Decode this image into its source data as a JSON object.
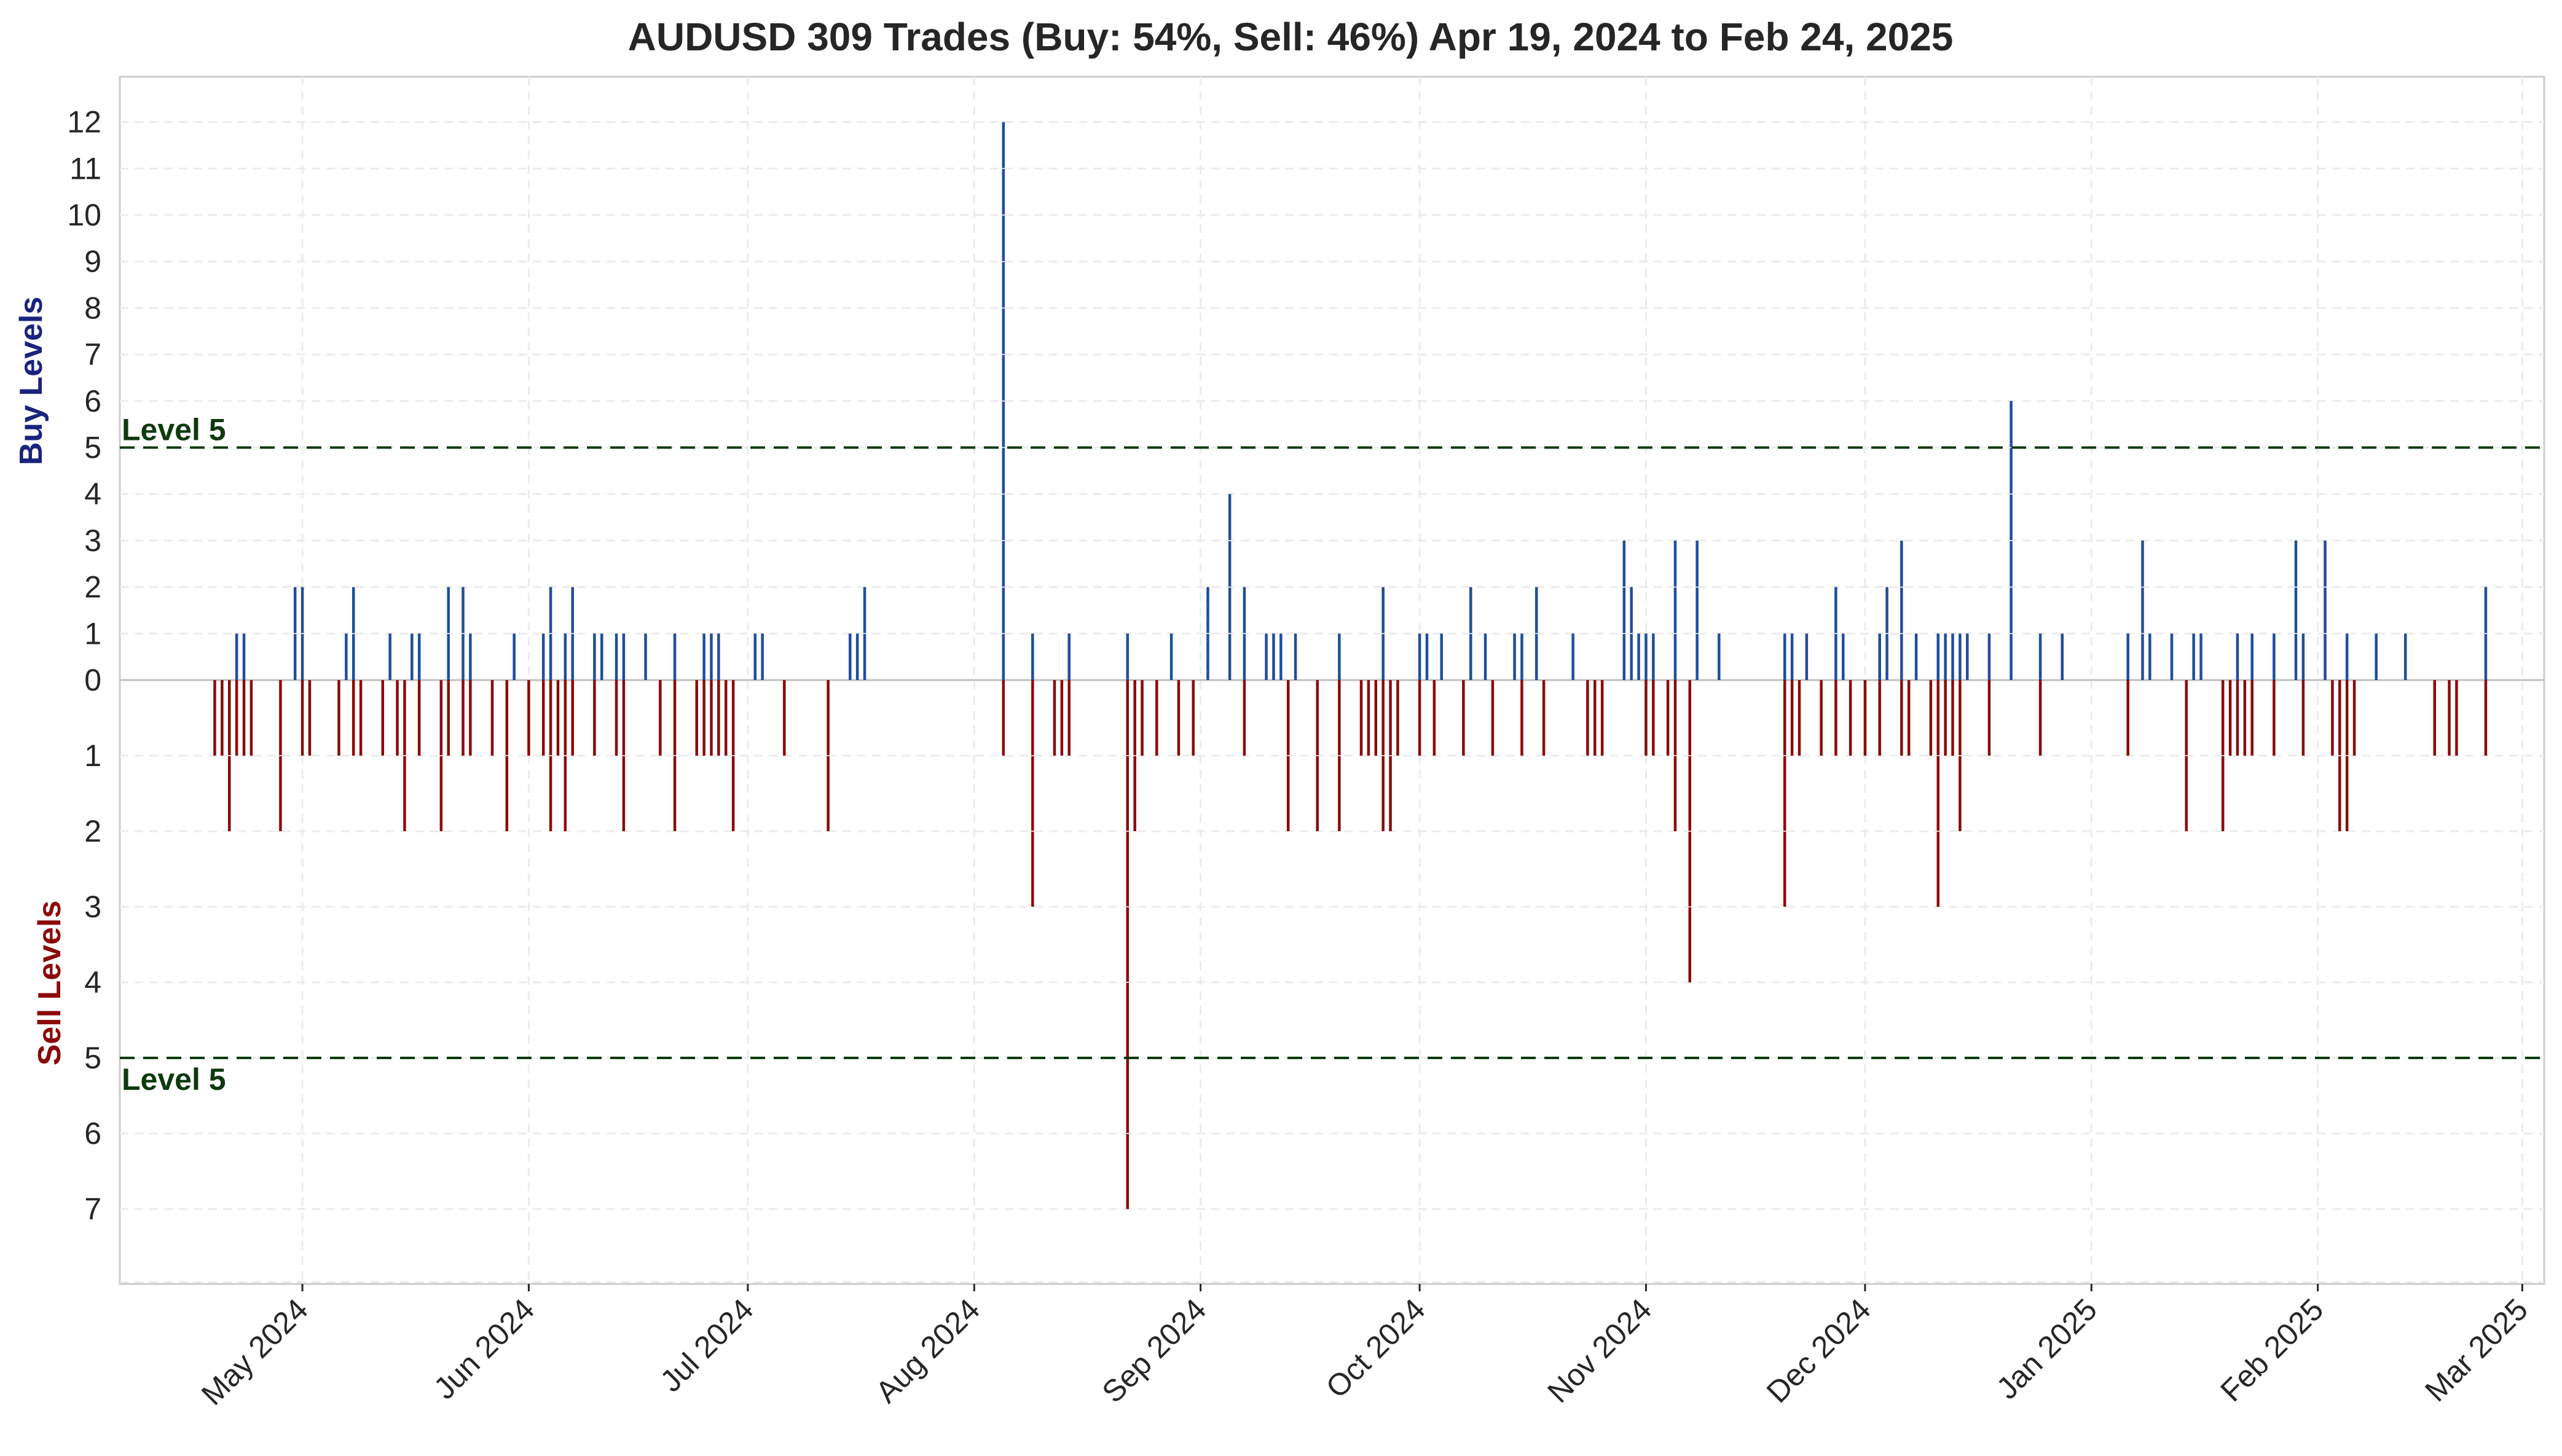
{
  "chart_data": {
    "type": "bar",
    "title": "AUDUSD 309 Trades (Buy: 54%, Sell: 46%) Apr 19, 2024 to Feb 24, 2025",
    "ylabel_buy": "Buy Levels",
    "ylabel_sell": "Sell Levels",
    "x_range": [
      "2024-04-06",
      "2025-03-04"
    ],
    "x_ticks": [
      {
        "date": "2024-05-01",
        "label": "May 2024"
      },
      {
        "date": "2024-06-01",
        "label": "Jun 2024"
      },
      {
        "date": "2024-07-01",
        "label": "Jul 2024"
      },
      {
        "date": "2024-08-01",
        "label": "Aug 2024"
      },
      {
        "date": "2024-09-01",
        "label": "Sep 2024"
      },
      {
        "date": "2024-10-01",
        "label": "Oct 2024"
      },
      {
        "date": "2024-11-01",
        "label": "Nov 2024"
      },
      {
        "date": "2024-12-01",
        "label": "Dec 2024"
      },
      {
        "date": "2025-01-01",
        "label": "Jan 2025"
      },
      {
        "date": "2025-02-01",
        "label": "Feb 2025"
      },
      {
        "date": "2025-03-01",
        "label": "Mar 2025"
      }
    ],
    "buy_ylim": [
      0,
      13
    ],
    "sell_ylim": [
      0,
      8
    ],
    "buy_ticks": [
      0,
      1,
      2,
      3,
      4,
      5,
      6,
      7,
      8,
      9,
      10,
      11,
      12
    ],
    "sell_ticks": [
      1,
      2,
      3,
      4,
      5,
      6,
      7
    ],
    "reference_lines": [
      {
        "side": "buy",
        "level": 5,
        "label": "Level 5"
      },
      {
        "side": "sell",
        "level": 5,
        "label": "Level 5"
      }
    ],
    "grid": true,
    "series": [
      {
        "side": "buy",
        "color": "#1f4e9c",
        "points": [
          [
            "2024-04-22",
            1
          ],
          [
            "2024-04-23",
            1
          ],
          [
            "2024-04-30",
            2
          ],
          [
            "2024-05-01",
            2
          ],
          [
            "2024-05-07",
            1
          ],
          [
            "2024-05-08",
            2
          ],
          [
            "2024-05-13",
            1
          ],
          [
            "2024-05-16",
            1
          ],
          [
            "2024-05-17",
            1
          ],
          [
            "2024-05-21",
            2
          ],
          [
            "2024-05-23",
            2
          ],
          [
            "2024-05-24",
            1
          ],
          [
            "2024-05-30",
            1
          ],
          [
            "2024-06-03",
            1
          ],
          [
            "2024-06-04",
            2
          ],
          [
            "2024-06-06",
            1
          ],
          [
            "2024-06-07",
            2
          ],
          [
            "2024-06-10",
            1
          ],
          [
            "2024-06-11",
            1
          ],
          [
            "2024-06-13",
            1
          ],
          [
            "2024-06-14",
            1
          ],
          [
            "2024-06-17",
            1
          ],
          [
            "2024-06-21",
            1
          ],
          [
            "2024-06-25",
            1
          ],
          [
            "2024-06-26",
            1
          ],
          [
            "2024-06-27",
            1
          ],
          [
            "2024-07-02",
            1
          ],
          [
            "2024-07-03",
            1
          ],
          [
            "2024-07-15",
            1
          ],
          [
            "2024-07-16",
            1
          ],
          [
            "2024-07-17",
            2
          ],
          [
            "2024-08-05",
            12
          ],
          [
            "2024-08-09",
            1
          ],
          [
            "2024-08-14",
            1
          ],
          [
            "2024-08-22",
            1
          ],
          [
            "2024-08-28",
            1
          ],
          [
            "2024-09-02",
            2
          ],
          [
            "2024-09-05",
            4
          ],
          [
            "2024-09-07",
            2
          ],
          [
            "2024-09-10",
            1
          ],
          [
            "2024-09-11",
            1
          ],
          [
            "2024-09-12",
            1
          ],
          [
            "2024-09-14",
            1
          ],
          [
            "2024-09-20",
            1
          ],
          [
            "2024-09-26",
            2
          ],
          [
            "2024-10-01",
            1
          ],
          [
            "2024-10-02",
            1
          ],
          [
            "2024-10-04",
            1
          ],
          [
            "2024-10-08",
            2
          ],
          [
            "2024-10-10",
            1
          ],
          [
            "2024-10-14",
            1
          ],
          [
            "2024-10-15",
            1
          ],
          [
            "2024-10-17",
            2
          ],
          [
            "2024-10-22",
            1
          ],
          [
            "2024-10-29",
            3
          ],
          [
            "2024-10-30",
            2
          ],
          [
            "2024-10-31",
            1
          ],
          [
            "2024-11-01",
            1
          ],
          [
            "2024-11-02",
            1
          ],
          [
            "2024-11-05",
            3
          ],
          [
            "2024-11-08",
            3
          ],
          [
            "2024-11-11",
            1
          ],
          [
            "2024-11-20",
            1
          ],
          [
            "2024-11-21",
            1
          ],
          [
            "2024-11-23",
            1
          ],
          [
            "2024-11-27",
            2
          ],
          [
            "2024-11-28",
            1
          ],
          [
            "2024-12-03",
            1
          ],
          [
            "2024-12-04",
            2
          ],
          [
            "2024-12-06",
            3
          ],
          [
            "2024-12-08",
            1
          ],
          [
            "2024-12-11",
            1
          ],
          [
            "2024-12-12",
            1
          ],
          [
            "2024-12-13",
            1
          ],
          [
            "2024-12-14",
            1
          ],
          [
            "2024-12-15",
            1
          ],
          [
            "2024-12-18",
            1
          ],
          [
            "2024-12-21",
            6
          ],
          [
            "2024-12-25",
            1
          ],
          [
            "2024-12-28",
            1
          ],
          [
            "2025-01-06",
            1
          ],
          [
            "2025-01-08",
            3
          ],
          [
            "2025-01-09",
            1
          ],
          [
            "2025-01-12",
            1
          ],
          [
            "2025-01-15",
            1
          ],
          [
            "2025-01-16",
            1
          ],
          [
            "2025-01-21",
            1
          ],
          [
            "2025-01-23",
            1
          ],
          [
            "2025-01-26",
            1
          ],
          [
            "2025-01-29",
            3
          ],
          [
            "2025-01-30",
            1
          ],
          [
            "2025-02-02",
            3
          ],
          [
            "2025-02-05",
            1
          ],
          [
            "2025-02-09",
            1
          ],
          [
            "2025-02-13",
            1
          ],
          [
            "2025-02-24",
            2
          ]
        ]
      },
      {
        "side": "sell",
        "color": "#8b0a0a",
        "points": [
          [
            "2024-04-19",
            1
          ],
          [
            "2024-04-20",
            1
          ],
          [
            "2024-04-21",
            2
          ],
          [
            "2024-04-22",
            1
          ],
          [
            "2024-04-23",
            1
          ],
          [
            "2024-04-24",
            1
          ],
          [
            "2024-04-28",
            2
          ],
          [
            "2024-05-01",
            1
          ],
          [
            "2024-05-02",
            1
          ],
          [
            "2024-05-06",
            1
          ],
          [
            "2024-05-08",
            1
          ],
          [
            "2024-05-09",
            1
          ],
          [
            "2024-05-12",
            1
          ],
          [
            "2024-05-14",
            1
          ],
          [
            "2024-05-15",
            2
          ],
          [
            "2024-05-17",
            1
          ],
          [
            "2024-05-20",
            2
          ],
          [
            "2024-05-21",
            1
          ],
          [
            "2024-05-23",
            1
          ],
          [
            "2024-05-24",
            1
          ],
          [
            "2024-05-27",
            1
          ],
          [
            "2024-05-29",
            2
          ],
          [
            "2024-06-01",
            1
          ],
          [
            "2024-06-03",
            1
          ],
          [
            "2024-06-04",
            2
          ],
          [
            "2024-06-05",
            1
          ],
          [
            "2024-06-06",
            2
          ],
          [
            "2024-06-07",
            1
          ],
          [
            "2024-06-10",
            1
          ],
          [
            "2024-06-13",
            1
          ],
          [
            "2024-06-14",
            2
          ],
          [
            "2024-06-19",
            1
          ],
          [
            "2024-06-21",
            2
          ],
          [
            "2024-06-24",
            1
          ],
          [
            "2024-06-25",
            1
          ],
          [
            "2024-06-26",
            1
          ],
          [
            "2024-06-27",
            1
          ],
          [
            "2024-06-28",
            1
          ],
          [
            "2024-06-29",
            2
          ],
          [
            "2024-07-06",
            1
          ],
          [
            "2024-07-12",
            2
          ],
          [
            "2024-08-05",
            1
          ],
          [
            "2024-08-09",
            3
          ],
          [
            "2024-08-12",
            1
          ],
          [
            "2024-08-13",
            1
          ],
          [
            "2024-08-14",
            1
          ],
          [
            "2024-08-22",
            7
          ],
          [
            "2024-08-23",
            2
          ],
          [
            "2024-08-24",
            1
          ],
          [
            "2024-08-26",
            1
          ],
          [
            "2024-08-29",
            1
          ],
          [
            "2024-08-31",
            1
          ],
          [
            "2024-09-07",
            1
          ],
          [
            "2024-09-13",
            2
          ],
          [
            "2024-09-17",
            2
          ],
          [
            "2024-09-20",
            2
          ],
          [
            "2024-09-23",
            1
          ],
          [
            "2024-09-24",
            1
          ],
          [
            "2024-09-25",
            1
          ],
          [
            "2024-09-26",
            2
          ],
          [
            "2024-09-27",
            2
          ],
          [
            "2024-09-28",
            1
          ],
          [
            "2024-10-01",
            1
          ],
          [
            "2024-10-03",
            1
          ],
          [
            "2024-10-07",
            1
          ],
          [
            "2024-10-11",
            1
          ],
          [
            "2024-10-15",
            1
          ],
          [
            "2024-10-18",
            1
          ],
          [
            "2024-10-24",
            1
          ],
          [
            "2024-10-25",
            1
          ],
          [
            "2024-10-26",
            1
          ],
          [
            "2024-11-01",
            1
          ],
          [
            "2024-11-02",
            1
          ],
          [
            "2024-11-04",
            1
          ],
          [
            "2024-11-05",
            2
          ],
          [
            "2024-11-07",
            4
          ],
          [
            "2024-11-20",
            3
          ],
          [
            "2024-11-21",
            1
          ],
          [
            "2024-11-22",
            1
          ],
          [
            "2024-11-25",
            1
          ],
          [
            "2024-11-27",
            1
          ],
          [
            "2024-11-29",
            1
          ],
          [
            "2024-12-01",
            1
          ],
          [
            "2024-12-03",
            1
          ],
          [
            "2024-12-06",
            1
          ],
          [
            "2024-12-07",
            1
          ],
          [
            "2024-12-10",
            1
          ],
          [
            "2024-12-11",
            3
          ],
          [
            "2024-12-12",
            1
          ],
          [
            "2024-12-13",
            1
          ],
          [
            "2024-12-14",
            2
          ],
          [
            "2024-12-18",
            1
          ],
          [
            "2024-12-25",
            1
          ],
          [
            "2025-01-06",
            1
          ],
          [
            "2025-01-14",
            2
          ],
          [
            "2025-01-19",
            2
          ],
          [
            "2025-01-20",
            1
          ],
          [
            "2025-01-21",
            1
          ],
          [
            "2025-01-22",
            1
          ],
          [
            "2025-01-23",
            1
          ],
          [
            "2025-01-26",
            1
          ],
          [
            "2025-01-30",
            1
          ],
          [
            "2025-02-03",
            1
          ],
          [
            "2025-02-04",
            2
          ],
          [
            "2025-02-05",
            2
          ],
          [
            "2025-02-06",
            1
          ],
          [
            "2025-02-17",
            1
          ],
          [
            "2025-02-19",
            1
          ],
          [
            "2025-02-20",
            1
          ],
          [
            "2025-02-24",
            1
          ]
        ]
      }
    ]
  }
}
